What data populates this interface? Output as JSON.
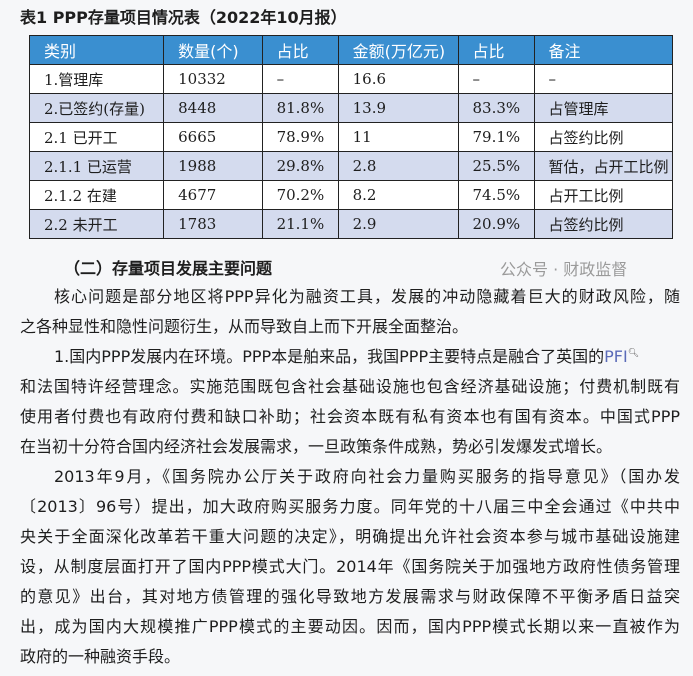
{
  "table_title": "表1  PPP存量项目情况表（2022年10月报）",
  "table": {
    "headers": [
      "类别",
      "数量(个)",
      "占比",
      "金额(万亿元)",
      "占比",
      "备注"
    ],
    "rows": [
      [
        "1.管理库",
        "10332",
        "–",
        "16.6",
        "–",
        "–"
      ],
      [
        "2.已签约(存量)",
        "8448",
        "81.8%",
        "13.9",
        "83.3%",
        "占管理库"
      ],
      [
        "2.1 已开工",
        "6665",
        "78.9%",
        "11",
        "79.1%",
        "占签约比例"
      ],
      [
        "2.1.1 已运营",
        "1988",
        "29.8%",
        "2.8",
        "25.5%",
        "暂估，占开工比例"
      ],
      [
        "2.1.2 在建",
        "4677",
        "70.2%",
        "8.2",
        "74.5%",
        "占开工比例"
      ],
      [
        "2.2 未开工",
        "1783",
        "21.1%",
        "2.9",
        "20.9%",
        "占签约比例"
      ]
    ],
    "header_color": "#3a8fd0",
    "stripe_color": "#d4dbee"
  },
  "watermark": "公众号 · 财政监督",
  "section_heading": "（二）存量项目发展主要问题",
  "lines": [
    {
      "t": "核心问题是部分地区将PPP异化为融资工具，发展的冲动隐藏着巨大的财政风险，随",
      "first": true
    },
    {
      "t": "之各种显性和隐性问题衍生，从而导致自上而下开展全面整治。",
      "last": true
    },
    {
      "t": "1.国内PPP发展内在环境。PPP本是舶来品，我国PPP主要特点是融合了英国的",
      "first": true,
      "link": "PFI"
    },
    {
      "t": "和法国特许经营理念。实施范围既包含社会基础设施也包含经济基础设施；付费机制既有"
    },
    {
      "t": "使用者付费也有政府付费和缺口补助；社会资本既有私有资本也有国有资本。中国式PPP"
    },
    {
      "t": "在当初十分符合国内经济社会发展需求，一旦政策条件成熟，势必引发爆发式增长。",
      "last": true
    },
    {
      "t": "2013年9月，《国务院办公厅关于政府向社会力量购买服务的指导意见》（国办发",
      "first": true
    },
    {
      "t": "〔2013〕96号）提出，加大政府购买服务力度。同年党的十八届三中全会通过《中共中"
    },
    {
      "t": "央关于全面深化改革若干重大问题的决定》，明确提出允许社会资本参与城市基础设施建"
    },
    {
      "t": "设，从制度层面打开了国内PPP模式大门。2014年《国务院关于加强地方政府性债务管理"
    },
    {
      "t": "的意见》出台，其对地方债管理的强化导致地方发展需求与财政保障不平衡矛盾日益突"
    },
    {
      "t": "出，成为国内大规模推广PPP模式的主要动因。因而，国内PPP模式长期以来一直被作为"
    },
    {
      "t": "政府的一种融资手段。",
      "last": true
    }
  ]
}
